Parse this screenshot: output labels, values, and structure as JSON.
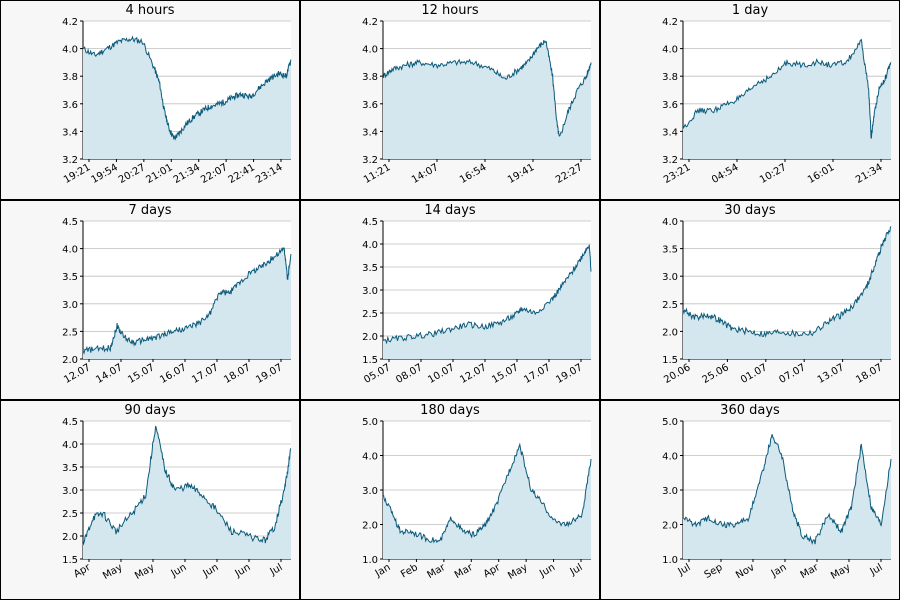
{
  "chart_data": [
    {
      "type": "area",
      "title": "4 hours",
      "ylim": [
        3.2,
        4.2
      ],
      "yticks": [
        3.2,
        3.4,
        3.6,
        3.8,
        4.0,
        4.2
      ],
      "ydec": 1,
      "xticks": [
        "19:21",
        "19:54",
        "20:27",
        "21:01",
        "21:34",
        "22:07",
        "22:41",
        "23:14"
      ],
      "series": [
        {
          "x": [
            0,
            0.5,
            1,
            1.5,
            2,
            2.5,
            3,
            3.2,
            3.4,
            3.6,
            3.8,
            4.0,
            4.3,
            4.6,
            5,
            5.3,
            5.7,
            6,
            6.3,
            6.6,
            7,
            7.4,
            7.8,
            8.2,
            8.5,
            8.7
          ],
          "values": [
            4.0,
            3.95,
            4.0,
            4.05,
            4.07,
            4.05,
            3.85,
            3.75,
            3.55,
            3.42,
            3.35,
            3.38,
            3.45,
            3.5,
            3.55,
            3.58,
            3.6,
            3.62,
            3.65,
            3.67,
            3.65,
            3.72,
            3.78,
            3.82,
            3.8,
            3.92
          ]
        }
      ],
      "color": "#0b5a7a",
      "fill": "#d4e6ee"
    },
    {
      "type": "area",
      "title": "12 hours",
      "ylim": [
        3.2,
        4.2
      ],
      "yticks": [
        3.2,
        3.4,
        3.6,
        3.8,
        4.0,
        4.2
      ],
      "ydec": 1,
      "xticks": [
        "11:21",
        "14:07",
        "16:54",
        "19:41",
        "22:27"
      ],
      "series": [
        {
          "x": [
            0,
            0.2,
            0.5,
            0.8,
            1.2,
            1.6,
            2.0,
            2.4,
            2.7,
            3.0,
            3.2,
            3.4,
            3.6,
            3.75,
            3.85,
            3.9,
            4.1,
            4.3,
            4.5,
            4.6
          ],
          "values": [
            3.8,
            3.85,
            3.88,
            3.9,
            3.88,
            3.9,
            3.9,
            3.85,
            3.78,
            3.85,
            3.9,
            4.0,
            4.06,
            3.8,
            3.45,
            3.35,
            3.55,
            3.7,
            3.8,
            3.9
          ]
        }
      ],
      "color": "#0b5a7a",
      "fill": "#d4e6ee"
    },
    {
      "type": "area",
      "title": "1 day",
      "ylim": [
        3.2,
        4.2
      ],
      "yticks": [
        3.2,
        3.4,
        3.6,
        3.8,
        4.0,
        4.2
      ],
      "ydec": 1,
      "xticks": [
        "23:21",
        "04:54",
        "10:27",
        "16:01",
        "21:34"
      ],
      "series": [
        {
          "x": [
            0,
            0.3,
            0.6,
            0.9,
            1.2,
            1.5,
            1.8,
            2.1,
            2.4,
            2.7,
            3.0,
            3.3,
            3.6,
            3.75,
            3.8,
            3.85,
            3.95,
            4.1,
            4.2
          ],
          "values": [
            3.42,
            3.55,
            3.55,
            3.6,
            3.65,
            3.75,
            3.8,
            3.9,
            3.88,
            3.9,
            3.88,
            3.9,
            4.05,
            3.7,
            3.35,
            3.5,
            3.7,
            3.8,
            3.9
          ]
        }
      ],
      "color": "#0b5a7a",
      "fill": "#d4e6ee"
    },
    {
      "type": "area",
      "title": "7 days",
      "ylim": [
        2.0,
        4.5
      ],
      "yticks": [
        2.0,
        2.5,
        3.0,
        3.5,
        4.0,
        4.5
      ],
      "ydec": 1,
      "xticks": [
        "12.07",
        "14.07",
        "15.07",
        "16.07",
        "17.07",
        "18.07",
        "19.07"
      ],
      "series": [
        {
          "x": [
            0,
            0.4,
            0.8,
            1.0,
            1.2,
            1.5,
            1.8,
            2.2,
            2.6,
            3.0,
            3.4,
            3.7,
            4.0,
            4.3,
            4.6,
            5.0,
            5.3,
            5.6,
            5.9,
            6.0,
            6.1
          ],
          "values": [
            2.15,
            2.18,
            2.2,
            2.6,
            2.4,
            2.3,
            2.35,
            2.4,
            2.5,
            2.55,
            2.65,
            2.8,
            3.2,
            3.2,
            3.4,
            3.6,
            3.7,
            3.85,
            4.0,
            3.45,
            3.9
          ]
        }
      ],
      "color": "#0b5a7a",
      "fill": "#d4e6ee"
    },
    {
      "type": "area",
      "title": "14 days",
      "ylim": [
        1.5,
        4.5
      ],
      "yticks": [
        1.5,
        2.0,
        2.5,
        3.0,
        3.5,
        4.0,
        4.5
      ],
      "ydec": 1,
      "xticks": [
        "05.07",
        "08.07",
        "10.07",
        "12.07",
        "15.07",
        "17.07",
        "19.07"
      ],
      "series": [
        {
          "x": [
            0,
            0.5,
            1.0,
            1.5,
            2.0,
            2.5,
            3.0,
            3.5,
            3.9,
            4.1,
            4.5,
            5.0,
            5.3,
            5.6,
            5.9,
            6.1,
            6.15
          ],
          "values": [
            1.9,
            1.95,
            2.0,
            2.05,
            2.15,
            2.25,
            2.2,
            2.3,
            2.45,
            2.6,
            2.5,
            2.8,
            3.1,
            3.4,
            3.75,
            4.0,
            3.4
          ]
        }
      ],
      "color": "#0b5a7a",
      "fill": "#d4e6ee"
    },
    {
      "type": "area",
      "title": "30 days",
      "ylim": [
        1.5,
        4.0
      ],
      "yticks": [
        1.5,
        2.0,
        2.5,
        3.0,
        3.5,
        4.0
      ],
      "ydec": 1,
      "xticks": [
        "20.06",
        "25.06",
        "01.07",
        "07.07",
        "13.07",
        "18.07"
      ],
      "series": [
        {
          "x": [
            0,
            0.3,
            0.6,
            0.9,
            1.2,
            1.6,
            2.0,
            2.4,
            2.8,
            3.2,
            3.6,
            3.9,
            4.2,
            4.5,
            4.7,
            4.9,
            5.1
          ],
          "values": [
            2.4,
            2.25,
            2.3,
            2.2,
            2.05,
            2.0,
            1.95,
            2.0,
            1.95,
            1.98,
            2.2,
            2.3,
            2.5,
            2.8,
            3.2,
            3.6,
            3.9
          ]
        }
      ],
      "color": "#0b5a7a",
      "fill": "#d4e6ee"
    },
    {
      "type": "area",
      "title": "90 days",
      "ylim": [
        1.5,
        4.5
      ],
      "yticks": [
        1.5,
        2.0,
        2.5,
        3.0,
        3.5,
        4.0,
        4.5
      ],
      "ydec": 1,
      "xticks": [
        "Apr",
        "May",
        "May",
        "Jun",
        "Jun",
        "Jun",
        "Jul"
      ],
      "series": [
        {
          "x": [
            0,
            0.3,
            0.6,
            1.0,
            1.5,
            1.9,
            2.2,
            2.5,
            2.8,
            3.2,
            3.6,
            4.0,
            4.5,
            5.0,
            5.5,
            5.8,
            6.1,
            6.3
          ],
          "values": [
            1.8,
            2.4,
            2.5,
            2.1,
            2.5,
            2.9,
            4.4,
            3.4,
            3.0,
            3.1,
            2.9,
            2.6,
            2.1,
            2.0,
            1.9,
            2.2,
            3.0,
            3.9
          ]
        }
      ],
      "color": "#0b5a7a",
      "fill": "#d4e6ee"
    },
    {
      "type": "area",
      "title": "180 days",
      "ylim": [
        1.0,
        5.0
      ],
      "yticks": [
        1.0,
        2.0,
        3.0,
        4.0,
        5.0
      ],
      "ydec": 1,
      "xticks": [
        "Jan",
        "Feb",
        "Mar",
        "Mar",
        "Apr",
        "May",
        "Jun",
        "Jul"
      ],
      "series": [
        {
          "x": [
            0,
            0.3,
            0.6,
            1.0,
            1.5,
            2.0,
            2.4,
            2.8,
            3.2,
            3.6,
            4.0,
            4.4,
            4.8,
            5.2,
            5.6,
            6.0,
            6.5,
            7.0,
            7.3
          ],
          "values": [
            2.8,
            2.4,
            1.8,
            1.8,
            1.6,
            1.5,
            2.2,
            1.8,
            1.7,
            2.0,
            2.6,
            3.5,
            4.3,
            3.0,
            2.6,
            2.1,
            2.0,
            2.3,
            3.9
          ]
        }
      ],
      "color": "#0b5a7a",
      "fill": "#d4e6ee"
    },
    {
      "type": "area",
      "title": "360 days",
      "ylim": [
        1.0,
        5.0
      ],
      "yticks": [
        1.0,
        2.0,
        3.0,
        4.0,
        5.0
      ],
      "ydec": 1,
      "xticks": [
        "Jul",
        "Sep",
        "Nov",
        "Jan",
        "Mar",
        "May",
        "Jul"
      ],
      "series": [
        {
          "x": [
            0,
            0.4,
            0.8,
            1.2,
            1.6,
            2.0,
            2.4,
            2.7,
            3.0,
            3.3,
            3.6,
            4.0,
            4.4,
            4.8,
            5.1,
            5.4,
            5.7,
            6.0,
            6.3
          ],
          "values": [
            2.2,
            2.0,
            2.2,
            2.0,
            2.0,
            2.2,
            3.5,
            4.6,
            4.0,
            2.5,
            1.7,
            1.5,
            2.3,
            1.8,
            2.5,
            4.3,
            2.5,
            2.0,
            3.9
          ]
        }
      ],
      "color": "#0b5a7a",
      "fill": "#d4e6ee"
    }
  ]
}
